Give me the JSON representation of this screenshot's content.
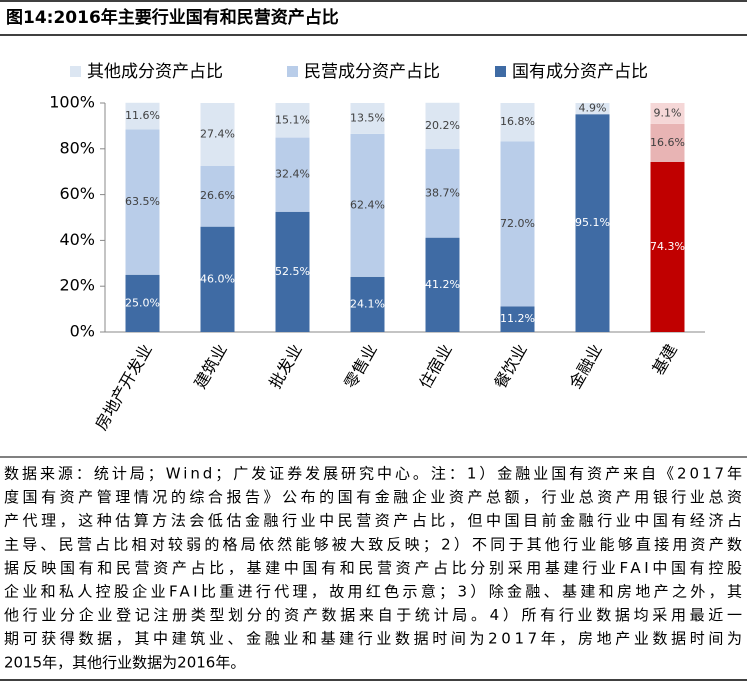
{
  "chart_data": {
    "type": "stacked_bar",
    "title": "图14:2016年主要行业国有和民营资产占比",
    "categories": [
      "房地产开发业",
      "建筑业",
      "批发业",
      "零售业",
      "住宿业",
      "餐饮业",
      "金融业",
      "基建"
    ],
    "series": [
      {
        "name": "国有成分资产占比",
        "color": "#3f6ba4",
        "colors": [
          "#3f6ba4",
          "#3f6ba4",
          "#3f6ba4",
          "#3f6ba4",
          "#3f6ba4",
          "#3f6ba4",
          "#3f6ba4",
          "#c00000"
        ],
        "values": [
          25.0,
          46.0,
          52.5,
          24.1,
          41.2,
          11.2,
          95.1,
          74.3
        ],
        "value_labels": [
          "25.0%",
          "46.0%",
          "52.5%",
          "24.1%",
          "41.2%",
          "11.2%",
          "95.1%",
          "74.3%"
        ]
      },
      {
        "name": "民营成分资产占比",
        "color": "#b9cde9",
        "colors": [
          "#b9cde9",
          "#b9cde9",
          "#b9cde9",
          "#b9cde9",
          "#b9cde9",
          "#b9cde9",
          "#b9cde9",
          "#e8b4b4"
        ],
        "values": [
          63.5,
          26.6,
          32.4,
          62.4,
          38.7,
          72.0,
          null,
          16.6
        ],
        "value_labels": [
          "63.5%",
          "26.6%",
          "32.4%",
          "62.4%",
          "38.7%",
          "72.0%",
          null,
          "16.6%"
        ]
      },
      {
        "name": "其他成分资产占比",
        "color": "#dce6f2",
        "colors": [
          "#dce6f2",
          "#dce6f2",
          "#dce6f2",
          "#dce6f2",
          "#dce6f2",
          "#dce6f2",
          "#dce6f2",
          "#f5d7d7"
        ],
        "values": [
          11.6,
          27.4,
          15.1,
          13.5,
          20.2,
          16.8,
          4.9,
          9.1
        ],
        "value_labels": [
          "11.6%",
          "27.4%",
          "15.1%",
          "13.5%",
          "20.2%",
          "16.8%",
          "4.9%",
          "9.1%"
        ]
      }
    ],
    "ylim": [
      0,
      100
    ],
    "yticks": [
      {
        "value": 0,
        "label": "0%"
      },
      {
        "value": 20,
        "label": "20%"
      },
      {
        "value": 40,
        "label": "40%"
      },
      {
        "value": 60,
        "label": "60%"
      },
      {
        "value": 80,
        "label": "80%"
      },
      {
        "value": 100,
        "label": "100%"
      }
    ],
    "legend": "top",
    "note": [
      "数据来源：统计局；Wind；广发证券发展研究中心。注：1）金融业国有资产来自《2017年",
      "度国有资产管理情况的综合报告》公布的国有金融企业资产总额，行业总资产用银行业总资",
      "产代理，这种估算方法会低估金融行业中民营资产占比，但中国目前金融行业中国有经济占",
      "主导、民营占比相对较弱的格局依然能够被大致反映；2）不同于其他行业能够直接用资产数",
      "据反映国有和民营资产占比，基建中国有和民营资产占比分别采用基建行业FAI中国有控股",
      "企业和私人控股企业FAI比重进行代理，故用红色示意；3）除金融、基建和房地产之外，其",
      "他行业分企业登记注册类型划分的资产数据来自于统计局。4）所有行业数据均采用最近一",
      "期可获得数据，其中建筑业、金融业和基建行业数据时间为2017年，房地产业数据时间为",
      "2015年，其他行业数据为2016年。"
    ]
  }
}
